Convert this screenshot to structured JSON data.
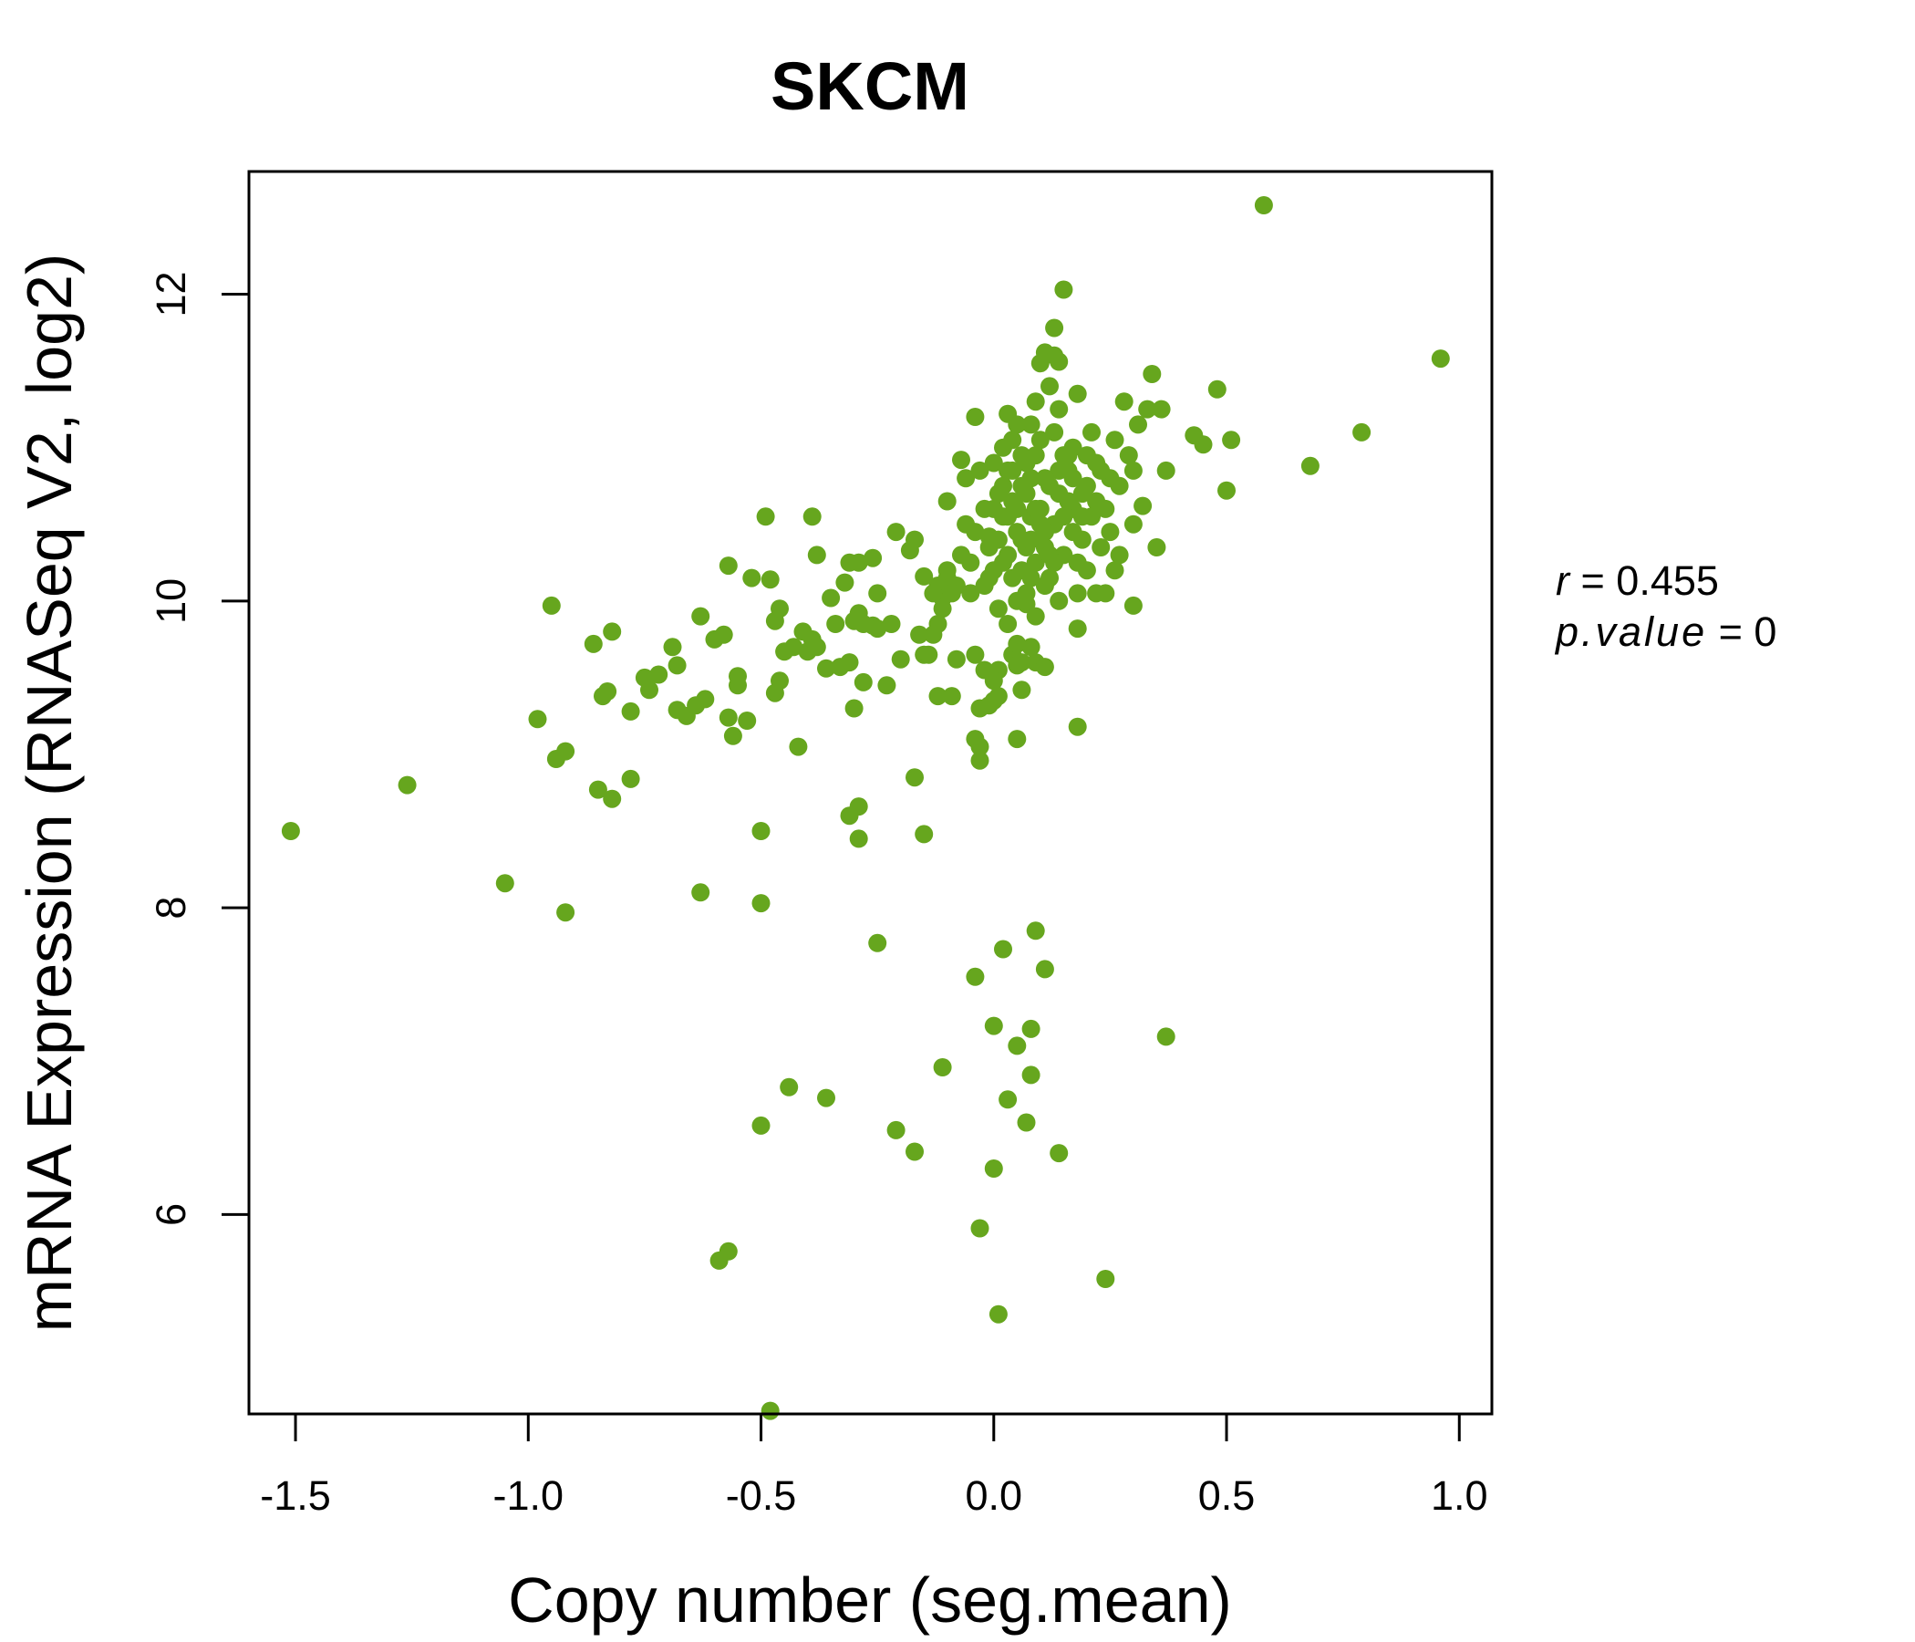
{
  "chart_data": {
    "type": "scatter",
    "title": "SKCM",
    "xlabel": "Copy number (seg.mean)",
    "ylabel": "mRNA Expression (RNASeq V2, log2)",
    "xlim": [
      -1.6,
      1.07
    ],
    "ylim": [
      4.7,
      12.8
    ],
    "xticks": [
      -1.5,
      -1.0,
      -0.5,
      0.0,
      0.5,
      1.0
    ],
    "xtick_labels": [
      "-1.5",
      "-1.0",
      "-0.5",
      "0.0",
      "0.5",
      "1.0"
    ],
    "yticks": [
      6,
      8,
      10,
      12
    ],
    "ytick_labels": [
      "6",
      "8",
      "10",
      "12"
    ],
    "grid": false,
    "point_color": "#66A61E",
    "stats": {
      "r_label": "r",
      "r_value": "0.455",
      "p_label": "p.value",
      "p_value": "0"
    },
    "points": [
      [
        -1.51,
        8.5
      ],
      [
        -1.26,
        8.8
      ],
      [
        -1.05,
        8.16
      ],
      [
        -0.92,
        7.97
      ],
      [
        -0.95,
        9.97
      ],
      [
        -0.98,
        9.23
      ],
      [
        -0.94,
        8.97
      ],
      [
        -0.92,
        9.02
      ],
      [
        -0.86,
        9.72
      ],
      [
        -0.84,
        9.38
      ],
      [
        -0.83,
        9.41
      ],
      [
        -0.82,
        9.8
      ],
      [
        -0.85,
        8.77
      ],
      [
        -0.82,
        8.71
      ],
      [
        -0.78,
        9.28
      ],
      [
        -0.78,
        8.84
      ],
      [
        -0.75,
        9.5
      ],
      [
        -0.74,
        9.42
      ],
      [
        -0.72,
        9.52
      ],
      [
        -0.69,
        9.7
      ],
      [
        -0.68,
        9.58
      ],
      [
        -0.68,
        9.29
      ],
      [
        -0.66,
        9.25
      ],
      [
        -0.64,
        9.32
      ],
      [
        -0.62,
        9.36
      ],
      [
        -0.63,
        9.9
      ],
      [
        -0.6,
        9.75
      ],
      [
        -0.57,
        9.24
      ],
      [
        -0.56,
        9.12
      ],
      [
        -0.58,
        9.78
      ],
      [
        -0.57,
        10.23
      ],
      [
        -0.52,
        10.15
      ],
      [
        -0.55,
        9.45
      ],
      [
        -0.53,
        9.22
      ],
      [
        -0.55,
        9.51
      ],
      [
        -0.49,
        10.55
      ],
      [
        -0.48,
        10.14
      ],
      [
        -0.47,
        9.87
      ],
      [
        -0.46,
        9.95
      ],
      [
        -0.47,
        9.4
      ],
      [
        -0.46,
        9.48
      ],
      [
        -0.45,
        9.67
      ],
      [
        -0.42,
        9.05
      ],
      [
        -0.43,
        9.7
      ],
      [
        -0.41,
        9.8
      ],
      [
        -0.4,
        9.67
      ],
      [
        -0.39,
        9.75
      ],
      [
        -0.38,
        9.7
      ],
      [
        -0.38,
        10.3
      ],
      [
        -0.39,
        10.55
      ],
      [
        -0.36,
        9.56
      ],
      [
        -0.35,
        10.02
      ],
      [
        -0.34,
        9.85
      ],
      [
        -0.33,
        9.57
      ],
      [
        -0.32,
        10.12
      ],
      [
        -0.31,
        9.6
      ],
      [
        -0.31,
        10.25
      ],
      [
        -0.3,
        9.87
      ],
      [
        -0.3,
        9.3
      ],
      [
        -0.29,
        10.25
      ],
      [
        -0.29,
        9.92
      ],
      [
        -0.28,
        9.85
      ],
      [
        -0.28,
        9.47
      ],
      [
        -0.26,
        9.84
      ],
      [
        -0.26,
        10.28
      ],
      [
        -0.25,
        10.05
      ],
      [
        -0.25,
        9.82
      ],
      [
        -0.23,
        9.45
      ],
      [
        -0.22,
        9.85
      ],
      [
        -0.21,
        10.45
      ],
      [
        -0.2,
        9.62
      ],
      [
        -0.18,
        10.33
      ],
      [
        -0.17,
        10.4
      ],
      [
        -0.16,
        9.78
      ],
      [
        -0.15,
        10.16
      ],
      [
        -0.15,
        9.65
      ],
      [
        -0.14,
        9.65
      ],
      [
        -0.13,
        9.78
      ],
      [
        -0.12,
        9.85
      ],
      [
        -0.12,
        9.38
      ],
      [
        -0.11,
        10.02
      ],
      [
        -0.1,
        10.15
      ],
      [
        -0.1,
        10.65
      ],
      [
        -0.09,
        9.38
      ],
      [
        -0.08,
        9.62
      ],
      [
        -0.07,
        10.92
      ],
      [
        -0.06,
        10.8
      ],
      [
        -0.05,
        10.05
      ],
      [
        -0.04,
        11.2
      ],
      [
        -0.04,
        9.65
      ],
      [
        -0.03,
        9.3
      ],
      [
        -0.02,
        9.55
      ],
      [
        -0.01,
        10.42
      ],
      [
        0.0,
        9.35
      ],
      [
        0.01,
        9.55
      ],
      [
        0.02,
        10.75
      ],
      [
        0.03,
        11.22
      ],
      [
        0.04,
        9.65
      ],
      [
        0.05,
        9.72
      ],
      [
        0.06,
        9.6
      ],
      [
        0.07,
        9.98
      ],
      [
        0.08,
        10.55
      ],
      [
        0.09,
        11.3
      ],
      [
        0.1,
        11.55
      ],
      [
        0.11,
        11.62
      ],
      [
        0.12,
        11.4
      ],
      [
        0.13,
        11.6
      ],
      [
        0.14,
        11.25
      ],
      [
        0.15,
        12.03
      ],
      [
        0.16,
        10.85
      ],
      [
        0.17,
        10.6
      ],
      [
        0.18,
        11.35
      ],
      [
        0.18,
        9.82
      ],
      [
        0.19,
        10.55
      ],
      [
        0.2,
        10.95
      ],
      [
        0.21,
        11.1
      ],
      [
        0.22,
        10.65
      ],
      [
        0.23,
        10.35
      ],
      [
        0.24,
        10.05
      ],
      [
        0.25,
        10.8
      ],
      [
        0.26,
        11.05
      ],
      [
        0.27,
        10.75
      ],
      [
        0.28,
        11.3
      ],
      [
        0.29,
        10.95
      ],
      [
        0.3,
        10.85
      ],
      [
        0.31,
        11.15
      ],
      [
        0.32,
        10.62
      ],
      [
        0.33,
        11.25
      ],
      [
        0.34,
        11.48
      ],
      [
        0.35,
        10.35
      ],
      [
        0.36,
        11.25
      ],
      [
        0.37,
        10.85
      ],
      [
        0.3,
        9.97
      ],
      [
        0.3,
        10.5
      ],
      [
        0.43,
        11.08
      ],
      [
        0.45,
        11.02
      ],
      [
        0.48,
        11.38
      ],
      [
        0.5,
        10.72
      ],
      [
        0.51,
        11.05
      ],
      [
        0.58,
        12.58
      ],
      [
        0.68,
        10.88
      ],
      [
        0.79,
        11.1
      ],
      [
        0.96,
        11.58
      ],
      [
        0.13,
        11.78
      ],
      [
        0.14,
        11.56
      ],
      [
        -0.02,
        10.6
      ],
      [
        -0.01,
        10.35
      ],
      [
        0.0,
        10.2
      ],
      [
        0.01,
        10.4
      ],
      [
        0.02,
        10.55
      ],
      [
        0.03,
        10.3
      ],
      [
        0.04,
        10.65
      ],
      [
        0.05,
        10.45
      ],
      [
        0.06,
        10.2
      ],
      [
        0.07,
        10.7
      ],
      [
        0.08,
        10.4
      ],
      [
        0.09,
        10.25
      ],
      [
        0.1,
        10.6
      ],
      [
        0.11,
        10.35
      ],
      [
        0.12,
        10.75
      ],
      [
        0.13,
        10.5
      ],
      [
        0.14,
        10.85
      ],
      [
        0.15,
        10.3
      ],
      [
        0.16,
        10.65
      ],
      [
        0.17,
        10.45
      ],
      [
        -0.03,
        10.85
      ],
      [
        -0.02,
        10.1
      ],
      [
        0.0,
        10.9
      ],
      [
        0.02,
        11.0
      ],
      [
        0.04,
        11.05
      ],
      [
        0.06,
        10.95
      ],
      [
        0.08,
        10.8
      ],
      [
        0.1,
        11.05
      ],
      [
        0.12,
        10.15
      ],
      [
        0.14,
        10.0
      ],
      [
        -0.05,
        10.25
      ],
      [
        -0.04,
        10.45
      ],
      [
        -0.06,
        10.5
      ],
      [
        -0.07,
        10.3
      ],
      [
        -0.08,
        10.1
      ],
      [
        0.03,
        9.85
      ],
      [
        0.05,
        10.0
      ],
      [
        0.07,
        10.05
      ],
      [
        0.09,
        9.9
      ],
      [
        0.11,
        10.1
      ],
      [
        0.18,
        10.25
      ],
      [
        0.19,
        10.4
      ],
      [
        0.2,
        10.75
      ],
      [
        0.21,
        10.55
      ],
      [
        0.22,
        10.9
      ],
      [
        0.23,
        10.85
      ],
      [
        0.24,
        10.6
      ],
      [
        0.25,
        10.45
      ],
      [
        0.26,
        10.2
      ],
      [
        0.27,
        10.3
      ],
      [
        0.01,
        10.7
      ],
      [
        0.03,
        10.85
      ],
      [
        0.05,
        10.6
      ],
      [
        0.07,
        10.35
      ],
      [
        0.09,
        10.95
      ],
      [
        0.11,
        10.8
      ],
      [
        0.13,
        11.1
      ],
      [
        0.15,
        10.95
      ],
      [
        0.17,
        11.0
      ],
      [
        0.19,
        10.7
      ],
      [
        -0.09,
        10.05
      ],
      [
        -0.1,
        10.2
      ],
      [
        -0.11,
        9.95
      ],
      [
        -0.12,
        10.1
      ],
      [
        -0.13,
        10.05
      ],
      [
        0.04,
        10.15
      ],
      [
        0.06,
        10.4
      ],
      [
        0.08,
        10.15
      ],
      [
        0.1,
        10.5
      ],
      [
        0.12,
        10.3
      ],
      [
        0.14,
        10.7
      ],
      [
        0.16,
        10.95
      ],
      [
        0.18,
        10.05
      ],
      [
        0.2,
        10.2
      ],
      [
        0.22,
        10.05
      ],
      [
        0.0,
        10.6
      ],
      [
        0.02,
        10.25
      ],
      [
        0.04,
        10.85
      ],
      [
        0.06,
        10.75
      ],
      [
        0.08,
        11.15
      ],
      [
        -0.01,
        10.15
      ],
      [
        0.01,
        9.95
      ],
      [
        0.03,
        10.55
      ],
      [
        0.05,
        11.15
      ],
      [
        0.07,
        10.9
      ],
      [
        0.09,
        10.6
      ],
      [
        0.11,
        10.45
      ],
      [
        0.13,
        10.25
      ],
      [
        0.15,
        10.55
      ],
      [
        0.17,
        10.8
      ],
      [
        0.09,
        9.6
      ],
      [
        0.11,
        9.57
      ],
      [
        0.08,
        9.7
      ],
      [
        0.05,
        9.58
      ],
      [
        0.06,
        9.42
      ],
      [
        0.0,
        9.48
      ],
      [
        -0.01,
        9.32
      ],
      [
        0.01,
        9.38
      ],
      [
        -0.03,
        9.05
      ],
      [
        -0.04,
        9.1
      ],
      [
        -0.03,
        8.96
      ],
      [
        0.05,
        9.1
      ],
      [
        0.18,
        9.18
      ],
      [
        -0.17,
        8.85
      ],
      [
        -0.15,
        8.48
      ],
      [
        -0.31,
        8.6
      ],
      [
        -0.29,
        8.66
      ],
      [
        -0.29,
        8.45
      ],
      [
        -0.5,
        8.5
      ],
      [
        -0.63,
        8.1
      ],
      [
        -0.5,
        8.03
      ],
      [
        -0.25,
        7.77
      ],
      [
        -0.04,
        7.55
      ],
      [
        0.02,
        7.73
      ],
      [
        0.09,
        7.85
      ],
      [
        0.11,
        7.6
      ],
      [
        0.0,
        7.23
      ],
      [
        0.08,
        7.21
      ],
      [
        0.05,
        7.1
      ],
      [
        0.37,
        7.16
      ],
      [
        -0.11,
        6.96
      ],
      [
        0.08,
        6.91
      ],
      [
        0.03,
        6.75
      ],
      [
        -0.44,
        6.83
      ],
      [
        -0.36,
        6.76
      ],
      [
        -0.5,
        6.58
      ],
      [
        -0.21,
        6.55
      ],
      [
        -0.17,
        6.41
      ],
      [
        0.07,
        6.6
      ],
      [
        0.14,
        6.4
      ],
      [
        0.0,
        6.3
      ],
      [
        -0.03,
        5.91
      ],
      [
        -0.57,
        5.76
      ],
      [
        -0.59,
        5.7
      ],
      [
        0.24,
        5.58
      ],
      [
        0.01,
        5.35
      ],
      [
        -0.48,
        4.72
      ]
    ]
  }
}
